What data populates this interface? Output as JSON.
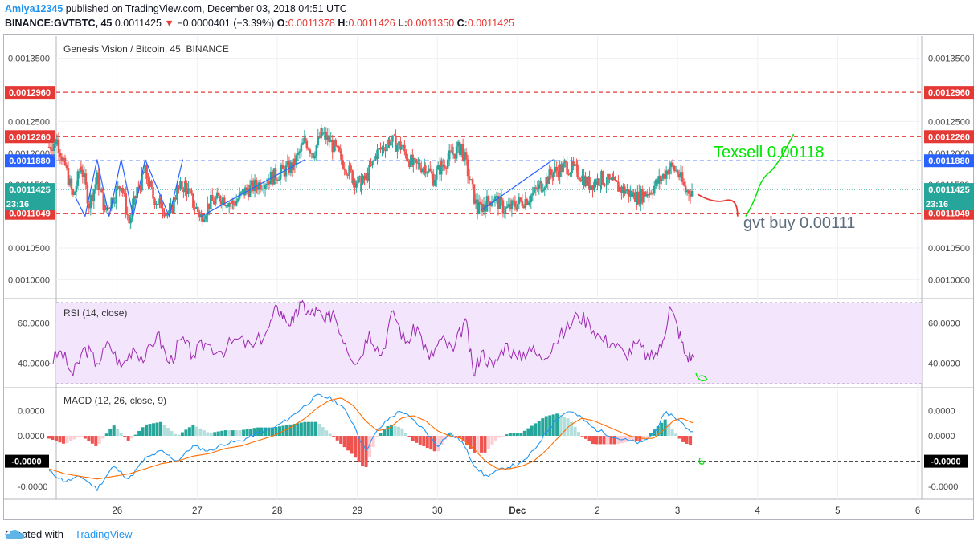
{
  "header": {
    "user": "Amiya12345",
    "published_text": "published on TradingView.com, December 03, 2018 04:51 UTC",
    "symbol": "BINANCE:GVTBTC, 45",
    "last": "0.0011425",
    "change": "−0.0000401 (−3.39%)",
    "o_label": "O:",
    "o": "0.0011378",
    "h_label": "H:",
    "h": "0.0011426",
    "l_label": "L:",
    "l": "0.0011350",
    "c_label": "C:",
    "c": "0.0011425"
  },
  "colors": {
    "up": "#26a69a",
    "down": "#ef5350",
    "red_line": "#e53935",
    "blue_line": "#2962ff",
    "rsi_fill": "#f3e5fb",
    "rsi_line": "#9c27b0",
    "macd": "#2196f3",
    "signal": "#ff6d00",
    "annot_green": "#00e600",
    "annot_gray": "#5d6d7e"
  },
  "chart_data": [
    {
      "type": "candlestick",
      "title": "Genesis Vision / Bitcoin, 45, BINANCE",
      "x_ticks": [
        "26",
        "27",
        "28",
        "29",
        "30",
        "Dec",
        "2",
        "3",
        "4",
        "5",
        "6"
      ],
      "y_ticks": [
        "0.0013500",
        "0.0012500",
        "0.0012000",
        "0.0011500",
        "0.0010500",
        "0.0010000"
      ],
      "y_tick_values": [
        0.00135,
        0.00125,
        0.0012,
        0.00115,
        0.00105,
        0.001
      ],
      "ylim": [
        0.00097,
        0.001385
      ],
      "levels": [
        {
          "label": "0.0012960",
          "value": 0.001296,
          "color": "#e53935",
          "style": "dashed"
        },
        {
          "label": "0.0012260",
          "value": 0.001226,
          "color": "#e53935",
          "style": "dashed"
        },
        {
          "label": "0.0011880",
          "value": 0.001188,
          "color": "#2962ff",
          "style": "dashed"
        },
        {
          "label": "0.0011049",
          "value": 0.0011049,
          "color": "#e53935",
          "style": "dashed"
        }
      ],
      "last_price": {
        "label": "0.0011425",
        "value": 0.0011425,
        "countdown": "23:16"
      },
      "close_path": [
        [
          25.15,
          0.00121
        ],
        [
          25.25,
          0.00122
        ],
        [
          25.35,
          0.00118
        ],
        [
          25.45,
          0.00113
        ],
        [
          25.55,
          0.00118
        ],
        [
          25.65,
          0.00112
        ],
        [
          25.75,
          0.00116
        ],
        [
          25.85,
          0.00111
        ],
        [
          25.95,
          0.00113
        ],
        [
          26.05,
          0.00115
        ],
        [
          26.15,
          0.00109
        ],
        [
          26.25,
          0.00114
        ],
        [
          26.35,
          0.00117
        ],
        [
          26.45,
          0.00113
        ],
        [
          26.55,
          0.00112
        ],
        [
          26.65,
          0.0011
        ],
        [
          26.75,
          0.00114
        ],
        [
          26.85,
          0.00115
        ],
        [
          26.95,
          0.00112
        ],
        [
          27.05,
          0.0011
        ],
        [
          27.15,
          0.00112
        ],
        [
          27.3,
          0.00113
        ],
        [
          27.45,
          0.00112
        ],
        [
          27.6,
          0.00114
        ],
        [
          27.75,
          0.00115
        ],
        [
          27.9,
          0.00116
        ],
        [
          28.05,
          0.00117
        ],
        [
          28.2,
          0.00118
        ],
        [
          28.35,
          0.00122
        ],
        [
          28.45,
          0.0012
        ],
        [
          28.55,
          0.00123
        ],
        [
          28.65,
          0.00122
        ],
        [
          28.8,
          0.00119
        ],
        [
          28.95,
          0.00116
        ],
        [
          29.05,
          0.00115
        ],
        [
          29.15,
          0.00117
        ],
        [
          29.25,
          0.0012
        ],
        [
          29.4,
          0.00122
        ],
        [
          29.55,
          0.00121
        ],
        [
          29.7,
          0.00118
        ],
        [
          29.85,
          0.00118
        ],
        [
          29.95,
          0.00116
        ],
        [
          30.05,
          0.00118
        ],
        [
          30.2,
          0.0012
        ],
        [
          30.3,
          0.00121
        ],
        [
          30.4,
          0.00116
        ],
        [
          30.5,
          0.00111
        ],
        [
          30.6,
          0.00112
        ],
        [
          30.7,
          0.00113
        ],
        [
          30.85,
          0.00111
        ],
        [
          31.0,
          0.00112
        ],
        [
          31.15,
          0.00113
        ],
        [
          31.3,
          0.00115
        ],
        [
          31.45,
          0.00117
        ],
        [
          31.6,
          0.00118
        ],
        [
          31.75,
          0.00117
        ],
        [
          31.9,
          0.00115
        ],
        [
          32.05,
          0.00116
        ],
        [
          32.2,
          0.00115
        ],
        [
          32.35,
          0.00114
        ],
        [
          32.5,
          0.00113
        ],
        [
          32.65,
          0.00114
        ],
        [
          32.8,
          0.00116
        ],
        [
          32.9,
          0.00118
        ],
        [
          33.0,
          0.00117
        ],
        [
          33.1,
          0.00114
        ],
        [
          33.2,
          0.001142
        ]
      ],
      "annotations": [
        {
          "text": "Texsell 0.00118",
          "color": "#00e600"
        },
        {
          "text": "gvt buy 0.00111",
          "color": "#5d6d7e"
        }
      ]
    },
    {
      "type": "line",
      "title": "RSI (14, close)",
      "y_ticks": [
        "60.0000",
        "40.0000"
      ],
      "y_tick_values": [
        60,
        40
      ],
      "ylim": [
        28,
        72
      ],
      "band": [
        30,
        70
      ],
      "x": [
        25.15,
        25.3,
        25.45,
        25.6,
        25.75,
        25.9,
        26.05,
        26.2,
        26.35,
        26.5,
        26.65,
        26.8,
        26.95,
        27.1,
        27.3,
        27.5,
        27.7,
        27.9,
        28.0,
        28.1,
        28.2,
        28.3,
        28.4,
        28.5,
        28.6,
        28.7,
        28.85,
        29.0,
        29.15,
        29.3,
        29.45,
        29.6,
        29.75,
        29.9,
        30.05,
        30.2,
        30.35,
        30.45,
        30.55,
        30.7,
        30.85,
        31.0,
        31.15,
        31.3,
        31.45,
        31.6,
        31.75,
        31.9,
        32.05,
        32.2,
        32.35,
        32.5,
        32.65,
        32.8,
        32.9,
        33.0,
        33.1,
        33.2
      ],
      "values": [
        40,
        46,
        34,
        48,
        40,
        50,
        38,
        48,
        42,
        55,
        40,
        52,
        44,
        50,
        46,
        52,
        48,
        58,
        68,
        62,
        60,
        70,
        64,
        66,
        60,
        66,
        50,
        40,
        56,
        44,
        66,
        50,
        58,
        42,
        52,
        46,
        62,
        34,
        46,
        38,
        50,
        42,
        48,
        42,
        50,
        56,
        64,
        60,
        52,
        50,
        44,
        50,
        42,
        48,
        68,
        58,
        44,
        43
      ]
    },
    {
      "type": "bar+line",
      "title": "MACD (12, 26, close, 9)",
      "y_ticks": [
        "0.0000",
        "0.0000",
        "-0.0000",
        "-0.0000"
      ],
      "y_tick_values": [
        1e-05,
        0,
        -1e-05,
        -2e-05
      ],
      "ylim": [
        -2.5e-05,
        1.9e-05
      ],
      "zero_label": "-0.0000",
      "x": [
        25.15,
        25.35,
        25.55,
        25.75,
        25.95,
        26.15,
        26.35,
        26.55,
        26.75,
        26.95,
        27.15,
        27.35,
        27.55,
        27.75,
        27.95,
        28.15,
        28.35,
        28.5,
        28.65,
        28.8,
        28.95,
        29.1,
        29.25,
        29.4,
        29.55,
        29.7,
        29.85,
        30.0,
        30.15,
        30.3,
        30.45,
        30.6,
        30.75,
        30.9,
        31.05,
        31.2,
        31.35,
        31.5,
        31.65,
        31.8,
        31.95,
        32.1,
        32.25,
        32.4,
        32.55,
        32.7,
        32.85,
        32.95,
        33.05,
        33.2
      ],
      "macd": [
        -1.4e-05,
        -1.8e-05,
        -1.6e-05,
        -2.1e-05,
        -1.2e-05,
        -1.7e-05,
        -9e-06,
        -6e-06,
        -1e-05,
        -4e-06,
        -6e-06,
        -3e-06,
        -2e-06,
        1e-06,
        3e-06,
        7e-06,
        1.2e-05,
        1.6e-05,
        1.5e-05,
        1.2e-05,
        5e-06,
        -6e-06,
        2e-06,
        7e-06,
        1e-05,
        6e-06,
        2e-06,
        -4e-06,
        1e-06,
        -2e-06,
        -1.1e-05,
        -1.6e-05,
        -1.4e-05,
        -1.2e-05,
        -1.1e-05,
        -6e-06,
        1e-06,
        7e-06,
        1e-05,
        7e-06,
        3e-06,
        1e-06,
        -1e-06,
        -2e-06,
        -3e-06,
        1e-06,
        9e-06,
        8e-06,
        5e-06,
        1e-06
      ],
      "signal": [
        -1.3e-05,
        -1.5e-05,
        -1.6e-05,
        -1.7e-05,
        -1.6e-05,
        -1.5e-05,
        -1.3e-05,
        -1.1e-05,
        -1e-05,
        -8e-06,
        -7e-06,
        -5e-06,
        -4e-06,
        -2e-06,
        0.0,
        3e-06,
        7e-06,
        1.1e-05,
        1.4e-05,
        1.5e-05,
        1.2e-05,
        6e-06,
        2e-06,
        3e-06,
        7e-06,
        8e-06,
        6e-06,
        2e-06,
        0.0,
        -1e-06,
        -5e-06,
        -1e-05,
        -1.3e-05,
        -1.3e-05,
        -1.2e-05,
        -1e-05,
        -6e-06,
        -1e-06,
        4e-06,
        7e-06,
        6e-06,
        4e-06,
        2e-06,
        0.0,
        -1e-06,
        -1e-06,
        3e-06,
        6e-06,
        7e-06,
        5e-06
      ]
    }
  ],
  "footer": {
    "created_with": "Created with",
    "brand": "TradingView"
  }
}
